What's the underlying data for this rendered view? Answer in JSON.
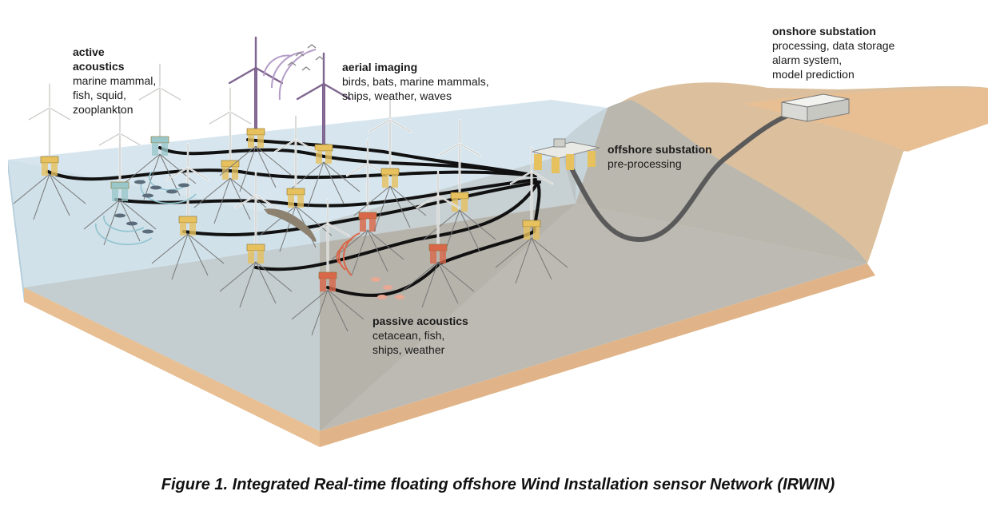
{
  "labels": {
    "active_acoustics": {
      "title_lines": [
        "active",
        "acoustics"
      ],
      "lines": [
        "marine mammal,",
        "fish, squid,",
        "zooplankton"
      ]
    },
    "aerial_imaging": {
      "title_lines": [
        "aerial imaging"
      ],
      "lines": [
        "birds, bats, marine mammals,",
        "ships, weather, waves"
      ]
    },
    "offshore_substation": {
      "title_lines": [
        "offshore substation"
      ],
      "lines": [
        "pre-processing"
      ]
    },
    "onshore_substation": {
      "title_lines": [
        "onshore substation"
      ],
      "lines": [
        "processing, data storage",
        "alarm system,",
        "model prediction"
      ]
    },
    "passive_acoustics": {
      "title_lines": [
        "passive acoustics"
      ],
      "lines": [
        "cetacean, fish,",
        "ships, weather"
      ]
    }
  },
  "caption": "Figure 1. Integrated Real-time floating offshore Wind Installation sensor Network (IRWIN)",
  "colors": {
    "sea_surface": "#c9dde8",
    "sea_front": "#cbdde6",
    "seabed": "#bdbab3",
    "sand": "#e8bf93",
    "cable": "#111111",
    "export_cable": "#5a5a5a",
    "turbine_standard": "#e6c15e",
    "turbine_active": "#9ac7c9",
    "turbine_passive": "#d9674a",
    "turbine_aerial": "#7b5b8f"
  }
}
